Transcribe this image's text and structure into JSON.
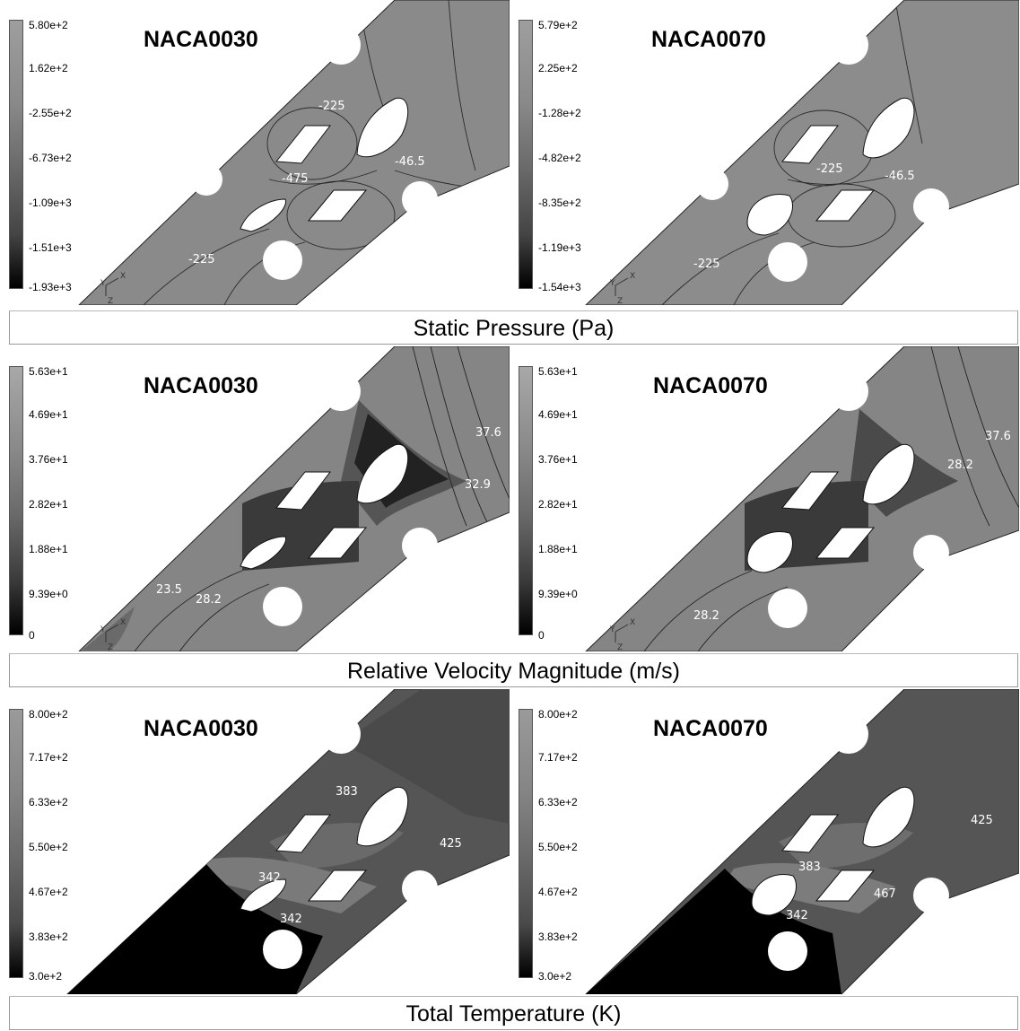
{
  "rows": [
    {
      "caption": "Static Pressure (Pa)",
      "panels": [
        {
          "title": "NACA0030",
          "legend": [
            "5.80e+2",
            "1.62e+2",
            "-2.55e+2",
            "-6.73e+2",
            "-1.09e+3",
            "-1.51e+3",
            "-1.93e+3"
          ],
          "annotations": [
            "-225",
            "-475",
            "-46.5",
            "-225"
          ]
        },
        {
          "title": "NACA0070",
          "legend": [
            "5.79e+2",
            "2.25e+2",
            "-1.28e+2",
            "-4.82e+2",
            "-8.35e+2",
            "-1.19e+3",
            "-1.54e+3"
          ],
          "annotations": [
            "-225",
            "-46.5",
            "-225"
          ]
        }
      ]
    },
    {
      "caption": "Relative Velocity Magnitude (m/s)",
      "panels": [
        {
          "title": "NACA0030",
          "legend": [
            "5.63e+1",
            "4.69e+1",
            "3.76e+1",
            "2.82e+1",
            "1.88e+1",
            "9.39e+0",
            "0"
          ],
          "annotations": [
            "37.6",
            "32.9",
            "23.5",
            "28.2"
          ]
        },
        {
          "title": "NACA0070",
          "legend": [
            "5.63e+1",
            "4.69e+1",
            "3.76e+1",
            "2.82e+1",
            "1.88e+1",
            "9.39e+0",
            "0"
          ],
          "annotations": [
            "37.6",
            "28.2",
            "28.2"
          ]
        }
      ]
    },
    {
      "caption": "Total Temperature (K)",
      "panels": [
        {
          "title": "NACA0030",
          "legend": [
            "8.00e+2",
            "7.17e+2",
            "6.33e+2",
            "5.50e+2",
            "4.67e+2",
            "3.83e+2",
            "3.0e+2"
          ],
          "annotations": [
            "383",
            "425",
            "342",
            "342"
          ]
        },
        {
          "title": "NACA0070",
          "legend": [
            "8.00e+2",
            "7.17e+2",
            "6.33e+2",
            "5.50e+2",
            "4.67e+2",
            "3.83e+2",
            "3.0e+2"
          ],
          "annotations": [
            "425",
            "383",
            "467",
            "342"
          ]
        }
      ]
    }
  ],
  "axis_labels": {
    "x": "X",
    "y": "Y",
    "z": "Z"
  },
  "colors": {
    "field_light": "#8e8e8e",
    "field_mid": "#6e6e6e",
    "field_dark": "#2a2a2a",
    "void": "#ffffff",
    "caption_border": "#9a9a9a"
  }
}
